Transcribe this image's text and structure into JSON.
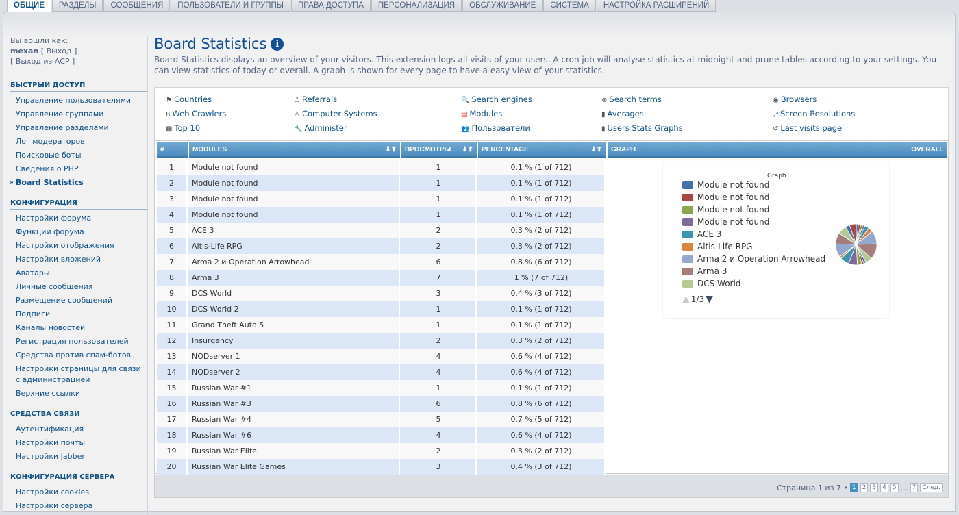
{
  "tabs": [
    "ОБЩИЕ",
    "РАЗДЕЛЫ",
    "СООБЩЕНИЯ",
    "ПОЛЬЗОВАТЕЛИ И ГРУППЫ",
    "ПРАВА ДОСТУПА",
    "ПЕРСОНАЛИЗАЦИЯ",
    "ОБСЛУЖИВАНИЕ",
    "СИСТЕМА",
    "НАСТРОЙКА РАСШИРЕНИЙ"
  ],
  "login": {
    "label": "Вы вошли как:",
    "user": "mexan",
    "logout": "[ Выход ]",
    "logout_acp": "[ Выход из ACP ]"
  },
  "sidebar": [
    {
      "title": "БЫСТРЫЙ ДОСТУП",
      "items": [
        "Управление пользователями",
        "Управление группами",
        "Управление разделами",
        "Лог модераторов",
        "Поисковые боты",
        "Сведения о PHP",
        "Board Statistics"
      ]
    },
    {
      "title": "КОНФИГУРАЦИЯ",
      "items": [
        "Настройки форума",
        "Функции форума",
        "Настройки отображения",
        "Настройки вложений",
        "Аватары",
        "Личные сообщения",
        "Размещение сообщений",
        "Подписи",
        "Каналы новостей",
        "Регистрация пользователей",
        "Средства против спам-ботов",
        "Настройки страницы для связи с администрацией",
        "Верхние ссылки"
      ]
    },
    {
      "title": "СРЕДСТВА СВЯЗИ",
      "items": [
        "Аутентификация",
        "Настройки почты",
        "Настройки Jabber"
      ]
    },
    {
      "title": "КОНФИГУРАЦИЯ СЕРВЕРА",
      "items": [
        "Настройки cookies",
        "Настройки сервера"
      ]
    }
  ],
  "page": {
    "title": "Board Statistics",
    "description": "Board Statistics displays an overview of your visitors. This extension logs all visits of your users. A cron job will analyse statistics at midnight and prune tables according to your settings. You can view statistics of today or overall. A graph is shown for every page to have a easy view of your statistics."
  },
  "links": [
    {
      "label": "Countries",
      "icon": "flag-icon",
      "g": "⚑"
    },
    {
      "label": "Referrals",
      "icon": "anchor-icon",
      "g": "⚓"
    },
    {
      "label": "Search engines",
      "icon": "search-icon",
      "g": "🔍"
    },
    {
      "label": "Search terms",
      "icon": "search-plus-icon",
      "g": "⊕"
    },
    {
      "label": "Browsers",
      "icon": "eye-icon",
      "g": "◉"
    },
    {
      "label": "Web Crawlers",
      "icon": "crawler-icon",
      "g": "8"
    },
    {
      "label": "Computer Systems",
      "icon": "linux-icon",
      "g": "♙"
    },
    {
      "label": "Modules",
      "icon": "modules-icon",
      "g": "▤"
    },
    {
      "label": "Averages",
      "icon": "bar-chart-icon",
      "g": "▮"
    },
    {
      "label": "Screen Resolutions",
      "icon": "resize-icon",
      "g": "⤢"
    },
    {
      "label": "Top 10",
      "icon": "table-icon",
      "g": "▦"
    },
    {
      "label": "Administer",
      "icon": "wrench-icon",
      "g": "🔧"
    },
    {
      "label": "Пользователи",
      "icon": "users-icon",
      "g": "👥"
    },
    {
      "label": "Users Stats Graphs",
      "icon": "bar-chart-icon",
      "g": "▮"
    },
    {
      "label": "Last visits page",
      "icon": "history-icon",
      "g": "↺"
    }
  ],
  "table": {
    "headers": [
      "#",
      "MODULES",
      "ПРОСМОТРЫ",
      "PERCENTAGE",
      "GRAPH",
      "OVERALL"
    ],
    "rows": [
      [
        "1",
        "Module not found",
        "1",
        "0.1 % (1 of 712)"
      ],
      [
        "2",
        "Module not found",
        "1",
        "0.1 % (1 of 712)"
      ],
      [
        "3",
        "Module not found",
        "1",
        "0.1 % (1 of 712)"
      ],
      [
        "4",
        "Module not found",
        "1",
        "0.1 % (1 of 712)"
      ],
      [
        "5",
        "ACE 3",
        "2",
        "0.3 % (2 of 712)"
      ],
      [
        "6",
        "Altis-Life RPG",
        "2",
        "0.3 % (2 of 712)"
      ],
      [
        "7",
        "Arma 2 и Operation Arrowhead",
        "6",
        "0.8 % (6 of 712)"
      ],
      [
        "8",
        "Arma 3",
        "7",
        "1 % (7 of 712)"
      ],
      [
        "9",
        "DCS World",
        "3",
        "0.4 % (3 of 712)"
      ],
      [
        "10",
        "DCS World 2",
        "1",
        "0.1 % (1 of 712)"
      ],
      [
        "11",
        "Grand Theft Auto 5",
        "1",
        "0.1 % (1 of 712)"
      ],
      [
        "12",
        "Insurgency",
        "2",
        "0.3 % (2 of 712)"
      ],
      [
        "13",
        "NODserver 1",
        "4",
        "0.6 % (4 of 712)"
      ],
      [
        "14",
        "NODserver 2",
        "4",
        "0.6 % (4 of 712)"
      ],
      [
        "15",
        "Russian War #1",
        "1",
        "0.1 % (1 of 712)"
      ],
      [
        "16",
        "Russian War #3",
        "6",
        "0.8 % (6 of 712)"
      ],
      [
        "17",
        "Russian War #4",
        "5",
        "0.7 % (5 of 712)"
      ],
      [
        "18",
        "Russian War #6",
        "4",
        "0.6 % (4 of 712)"
      ],
      [
        "19",
        "Russian War Elite",
        "2",
        "0.3 % (2 of 712)"
      ],
      [
        "20",
        "Russian War Elite Games",
        "3",
        "0.4 % (3 of 712)"
      ]
    ]
  },
  "graph": {
    "title": "Graph",
    "legend": [
      "Module not found",
      "Module not found",
      "Module not found",
      "Module not found",
      "ACE 3",
      "Altis-Life RPG",
      "Arma 2 и Operation Arrowhead",
      "Arma 3",
      "DCS World"
    ],
    "colors": [
      "#4572a7",
      "#aa4643",
      "#89a54e",
      "#80699b",
      "#3d96ae",
      "#db843d",
      "#92a8cd",
      "#a47d7c",
      "#b5ca92"
    ],
    "legend_page": "1/3"
  },
  "pagination": {
    "label": "Страница 1 из 7 •",
    "pages": [
      "1",
      "2",
      "3",
      "4",
      "5",
      "…",
      "7"
    ],
    "next": "След."
  }
}
